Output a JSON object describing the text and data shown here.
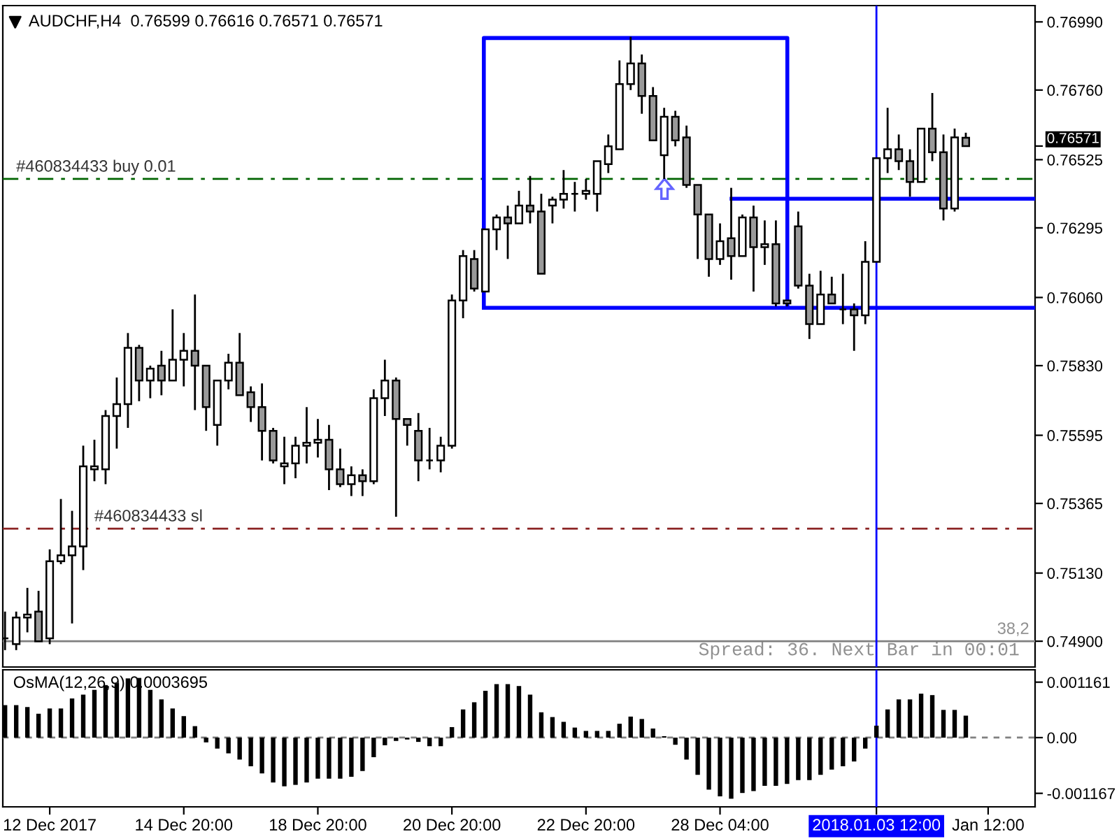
{
  "chart_data": [
    {
      "type": "candlestick",
      "title": "AUDCHF,H4  0.76599 0.76616 0.76571 0.76571",
      "categories": [
        null,
        null,
        null,
        null,
        "12 Dec 2017",
        null,
        null,
        null,
        null,
        null,
        null,
        null,
        null,
        null,
        null,
        null,
        "14 Dec 20:00",
        null,
        null,
        null,
        null,
        null,
        null,
        null,
        null,
        null,
        null,
        null,
        "18 Dec 20:00",
        null,
        null,
        null,
        null,
        null,
        null,
        null,
        null,
        null,
        null,
        null,
        "20 Dec 20:00",
        null,
        null,
        null,
        null,
        null,
        null,
        null,
        null,
        null,
        null,
        null,
        "22 Dec 20:00",
        null,
        null,
        null,
        null,
        null,
        null,
        null,
        null,
        null,
        null,
        null,
        "28 Dec 04:00",
        null,
        null,
        null,
        null,
        null,
        null,
        null,
        null,
        null,
        null,
        null,
        null,
        null,
        "2018.01.03 12:00",
        null,
        null,
        null,
        null,
        null,
        null,
        null,
        null,
        null,
        "Jan 12:00",
        null
      ],
      "ohlc": [
        [
          0.7491,
          0.75,
          0.7487,
          0.7491
        ],
        [
          0.7489,
          0.75,
          0.7487,
          0.7498
        ],
        [
          0.7498,
          0.7508,
          0.7493,
          0.7499
        ],
        [
          0.75,
          0.7507,
          0.749,
          0.749
        ],
        [
          0.7491,
          0.7521,
          0.7489,
          0.7517
        ],
        [
          0.7517,
          0.7538,
          0.7516,
          0.7519
        ],
        [
          0.7519,
          0.7534,
          0.7496,
          0.7522
        ],
        [
          0.7522,
          0.7556,
          0.7514,
          0.7549
        ],
        [
          0.7548,
          0.7558,
          0.7544,
          0.7549
        ],
        [
          0.7548,
          0.7568,
          0.7543,
          0.7566
        ],
        [
          0.7566,
          0.7579,
          0.7555,
          0.757
        ],
        [
          0.757,
          0.7594,
          0.7562,
          0.7589
        ],
        [
          0.7589,
          0.759,
          0.7571,
          0.7578
        ],
        [
          0.7578,
          0.7583,
          0.7572,
          0.7582
        ],
        [
          0.7583,
          0.7588,
          0.7573,
          0.7578
        ],
        [
          0.7578,
          0.7602,
          0.7578,
          0.7585
        ],
        [
          0.7585,
          0.7594,
          0.7576,
          0.7588
        ],
        [
          0.7588,
          0.7607,
          0.7568,
          0.7583
        ],
        [
          0.7583,
          0.7583,
          0.7561,
          0.7569
        ],
        [
          0.7563,
          0.7578,
          0.7556,
          0.7578
        ],
        [
          0.7578,
          0.7587,
          0.7575,
          0.7584
        ],
        [
          0.7584,
          0.7594,
          0.7573,
          0.7573
        ],
        [
          0.7574,
          0.7576,
          0.7564,
          0.7569
        ],
        [
          0.7569,
          0.7577,
          0.7551,
          0.7561
        ],
        [
          0.7561,
          0.7562,
          0.755,
          0.7551
        ],
        [
          0.7549,
          0.7559,
          0.7543,
          0.755
        ],
        [
          0.755,
          0.7559,
          0.7545,
          0.7556
        ],
        [
          0.7556,
          0.7569,
          0.755,
          0.7557
        ],
        [
          0.7557,
          0.7565,
          0.7552,
          0.7558
        ],
        [
          0.7558,
          0.7563,
          0.7541,
          0.7548
        ],
        [
          0.7548,
          0.7555,
          0.7542,
          0.7543
        ],
        [
          0.7543,
          0.7549,
          0.7539,
          0.7546
        ],
        [
          0.7546,
          0.7548,
          0.7539,
          0.7544
        ],
        [
          0.7544,
          0.7575,
          0.7543,
          0.7572
        ],
        [
          0.7572,
          0.7585,
          0.7566,
          0.7578
        ],
        [
          0.7578,
          0.7579,
          0.7532,
          0.7565
        ],
        [
          0.7565,
          0.7565,
          0.7556,
          0.7563
        ],
        [
          0.7561,
          0.7567,
          0.7544,
          0.7551
        ],
        [
          0.7551,
          0.7562,
          0.7548,
          0.7551
        ],
        [
          0.7551,
          0.7559,
          0.7547,
          0.7556
        ],
        [
          0.7556,
          0.7607,
          0.7555,
          0.7605
        ],
        [
          0.7605,
          0.7622,
          0.7599,
          0.762
        ],
        [
          0.7619,
          0.7622,
          0.7608,
          0.7609
        ],
        [
          0.7608,
          0.7629,
          0.7608,
          0.7629
        ],
        [
          0.7629,
          0.7634,
          0.7622,
          0.7633
        ],
        [
          0.7633,
          0.7637,
          0.7619,
          0.7631
        ],
        [
          0.7631,
          0.7642,
          0.7631,
          0.7637
        ],
        [
          0.7637,
          0.7647,
          0.7631,
          0.7635
        ],
        [
          0.7635,
          0.7641,
          0.7614,
          0.7614
        ],
        [
          0.7637,
          0.764,
          0.7631,
          0.7639
        ],
        [
          0.7639,
          0.7649,
          0.7636,
          0.7641
        ],
        [
          0.7641,
          0.7645,
          0.7635,
          0.7641
        ],
        [
          0.7641,
          0.7646,
          0.7639,
          0.7642
        ],
        [
          0.7641,
          0.7652,
          0.7635,
          0.7652
        ],
        [
          0.7651,
          0.7661,
          0.7648,
          0.7657
        ],
        [
          0.7656,
          0.7686,
          0.7656,
          0.7678
        ],
        [
          0.7678,
          0.7694,
          0.7676,
          0.7685
        ],
        [
          0.7685,
          0.7688,
          0.7668,
          0.7674
        ],
        [
          0.7674,
          0.7677,
          0.7659,
          0.7659
        ],
        [
          0.7654,
          0.767,
          0.7646,
          0.7667
        ],
        [
          0.7667,
          0.7669,
          0.7657,
          0.7659
        ],
        [
          0.766,
          0.7664,
          0.7643,
          0.7644
        ],
        [
          0.7644,
          0.7644,
          0.7619,
          0.7634
        ],
        [
          0.7634,
          0.7634,
          0.7613,
          0.7619
        ],
        [
          0.7619,
          0.7631,
          0.7617,
          0.7625
        ],
        [
          0.7626,
          0.7643,
          0.7612,
          0.762
        ],
        [
          0.762,
          0.7634,
          0.762,
          0.7633
        ],
        [
          0.7633,
          0.7637,
          0.7608,
          0.7623
        ],
        [
          0.7623,
          0.7632,
          0.7617,
          0.7624
        ],
        [
          0.7624,
          0.7632,
          0.7603,
          0.7604
        ],
        [
          0.7605,
          0.7605,
          0.7603,
          0.7604
        ],
        [
          0.763,
          0.7635,
          0.7609,
          0.761
        ],
        [
          0.761,
          0.7614,
          0.7592,
          0.7597
        ],
        [
          0.7597,
          0.7615,
          0.7597,
          0.7607
        ],
        [
          0.7607,
          0.7613,
          0.7604,
          0.7604
        ],
        [
          0.7602,
          0.7614,
          0.7597,
          0.7602
        ],
        [
          0.7602,
          0.7604,
          0.7588,
          0.76
        ],
        [
          0.76,
          0.7625,
          0.7597,
          0.7618
        ],
        [
          0.7618,
          0.7653,
          0.7618,
          0.7653
        ],
        [
          0.7653,
          0.767,
          0.7648,
          0.7656
        ],
        [
          0.7656,
          0.7661,
          0.7649,
          0.7652
        ],
        [
          0.7652,
          0.7656,
          0.764,
          0.7645
        ],
        [
          0.7645,
          0.7663,
          0.7645,
          0.7663
        ],
        [
          0.7663,
          0.7675,
          0.7652,
          0.7655
        ],
        [
          0.7655,
          0.7661,
          0.7632,
          0.7636
        ],
        [
          0.7636,
          0.7663,
          0.7635,
          0.766
        ],
        [
          0.76599,
          0.76616,
          0.76571,
          0.76571
        ],
        null,
        null,
        null
      ],
      "ylim": [
        0.74813,
        0.77045
      ],
      "yticks": [
        {
          "value": 0.7699,
          "label": "0.76990"
        },
        {
          "value": 0.7676,
          "label": "0.76760"
        },
        0.76571,
        0.76525,
        0.76295,
        {
          "value": 0.7606,
          "label": "0.76060"
        },
        {
          "value": 0.7583,
          "label": "0.75830"
        },
        0.75595,
        0.75365,
        {
          "value": 0.7513,
          "label": "0.75130"
        },
        {
          "value": 0.749,
          "label": "0.74900"
        }
      ],
      "tick_labels": "y",
      "ref_lines": [
        {
          "axis": "y",
          "value": 0.7646,
          "label": "#460834433 buy 0.01",
          "color": "#006400",
          "line_style": "dashdot"
        },
        {
          "axis": "y",
          "value": 0.7528,
          "label": "#460834433 sl",
          "color": "#8b2323",
          "line_style": "dashdot"
        },
        {
          "axis": "y",
          "value": 0.749,
          "color": "#808080",
          "line_style": "solid"
        },
        {
          "axis": "x",
          "value": "2018.01.03 12:00",
          "color": "#0000ff",
          "line_style": "solid"
        }
      ],
      "annotations": [
        {
          "text": "38,2",
          "y": 0.749
        },
        "Spread: 36. Next Bar in 00:01"
      ]
    },
    {
      "type": "bar",
      "title": "OsMA(12,26,9) 0.0003695",
      "categories": [
        null,
        null,
        null,
        null,
        "12 Dec 2017",
        null,
        null,
        null,
        null,
        null,
        null,
        null,
        null,
        null,
        null,
        null,
        "14 Dec 20:00",
        null,
        null,
        null,
        null,
        null,
        null,
        null,
        null,
        null,
        null,
        null,
        "18 Dec 20:00",
        null,
        null,
        null,
        null,
        null,
        null,
        null,
        null,
        null,
        null,
        null,
        "20 Dec 20:00",
        null,
        null,
        null,
        null,
        null,
        null,
        null,
        null,
        null,
        null,
        null,
        "22 Dec 20:00",
        null,
        null,
        null,
        null,
        null,
        null,
        null,
        null,
        null,
        null,
        null,
        "28 Dec 04:00",
        null,
        null,
        null,
        null,
        null,
        null,
        null,
        null,
        null,
        null,
        null,
        null,
        null,
        "2018.01.03 12:00",
        null,
        null,
        null,
        null,
        null,
        null,
        null,
        null,
        null,
        "Jan 12:00",
        null
      ],
      "color": "#000000",
      "values": [
        0.00068,
        0.00068,
        0.00064,
        0.0005,
        0.00061,
        0.00061,
        0.00082,
        0.0009,
        0.001,
        0.0011,
        0.00114,
        0.00124,
        0.00125,
        0.001,
        0.0008,
        0.00061,
        0.00045,
        0.00024,
        -0.0001,
        -0.00023,
        -0.00033,
        -0.00046,
        -0.0006,
        -0.00075,
        -0.00094,
        -0.00102,
        -0.00099,
        -0.00094,
        -0.00086,
        -0.00086,
        -0.00086,
        -0.00082,
        -0.0007,
        -0.00041,
        -0.00016,
        -7e-05,
        -4e-05,
        -9e-05,
        -0.00018,
        -0.00018,
        0.00022,
        0.00059,
        0.00074,
        0.00098,
        0.00112,
        0.00112,
        0.00108,
        0.0009,
        0.00053,
        0.00043,
        0.00033,
        0.00021,
        0.00014,
        0.00014,
        0.00014,
        0.00029,
        0.00044,
        0.00039,
        0.00019,
        3e-05,
        -0.00015,
        -0.00046,
        -0.00078,
        -0.00109,
        -0.00123,
        -0.00128,
        -0.00116,
        -0.00112,
        -0.00101,
        -0.00101,
        -0.00097,
        -0.00089,
        -0.00089,
        -0.00078,
        -0.00067,
        -0.0006,
        -0.0005,
        -0.00023,
        0.00025,
        0.00059,
        0.0008,
        0.0008,
        0.00092,
        0.00089,
        0.00058,
        0.00058,
        0.00046,
        null,
        null,
        null
      ],
      "ylim": [
        -0.00145,
        0.00142
      ],
      "yticks": [
        {
          "value": 0.0011613,
          "label": "0.001161"
        },
        {
          "value": 0,
          "label": "0.00"
        },
        {
          "value": -0.001167,
          "label": "-0.001167"
        }
      ],
      "ref_lines": [
        {
          "axis": "y",
          "value": 0,
          "color": "#808080",
          "line_style": "dashed"
        },
        {
          "axis": "x",
          "value": "2018.01.03 12:00",
          "color": "#0000ff",
          "line_style": "solid"
        }
      ]
    }
  ]
}
